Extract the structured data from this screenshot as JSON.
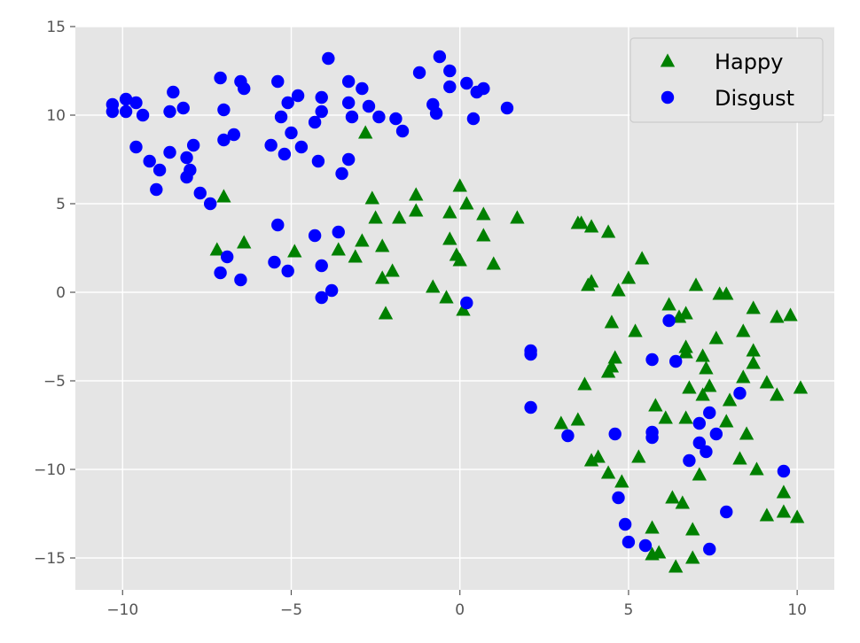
{
  "chart_data": {
    "type": "scatter",
    "title": "",
    "xlabel": "",
    "ylabel": "",
    "xlim": [
      -11.4,
      11.1
    ],
    "ylim": [
      -16.8,
      15.0
    ],
    "xticks": [
      -10,
      -5,
      0,
      5,
      10
    ],
    "yticks": [
      -15,
      -10,
      -5,
      0,
      5,
      10,
      15
    ],
    "xtick_labels": [
      "−10",
      "−5",
      "0",
      "5",
      "10"
    ],
    "ytick_labels": [
      "−15",
      "−10",
      "−5",
      "0",
      "5",
      "10",
      "15"
    ],
    "grid": true,
    "background": "#e5e5e5",
    "legend_position": "top-right",
    "series": [
      {
        "name": "Happy",
        "marker": "triangle",
        "color": "#008000",
        "points": [
          [
            -2.8,
            9.0
          ],
          [
            -7.0,
            5.4
          ],
          [
            -7.2,
            2.4
          ],
          [
            -6.4,
            2.8
          ],
          [
            -4.9,
            2.3
          ],
          [
            -3.6,
            2.4
          ],
          [
            -3.1,
            2.0
          ],
          [
            -2.9,
            2.9
          ],
          [
            -2.6,
            5.3
          ],
          [
            -2.5,
            4.2
          ],
          [
            -2.3,
            2.6
          ],
          [
            -2.0,
            1.2
          ],
          [
            -2.3,
            0.8
          ],
          [
            -2.2,
            -1.2
          ],
          [
            -1.8,
            4.2
          ],
          [
            -1.3,
            5.5
          ],
          [
            -1.3,
            4.6
          ],
          [
            -0.8,
            0.3
          ],
          [
            -0.4,
            -0.3
          ],
          [
            -0.3,
            4.5
          ],
          [
            -0.3,
            3.0
          ],
          [
            -0.1,
            2.1
          ],
          [
            0.0,
            1.8
          ],
          [
            0.0,
            6.0
          ],
          [
            0.2,
            5.0
          ],
          [
            0.1,
            -1.0
          ],
          [
            0.7,
            4.4
          ],
          [
            0.7,
            3.2
          ],
          [
            1.0,
            1.6
          ],
          [
            1.7,
            4.2
          ],
          [
            3.0,
            -7.4
          ],
          [
            3.5,
            -7.2
          ],
          [
            3.5,
            3.9
          ],
          [
            3.6,
            3.9
          ],
          [
            3.7,
            -5.2
          ],
          [
            3.8,
            0.4
          ],
          [
            3.9,
            0.6
          ],
          [
            3.9,
            3.7
          ],
          [
            3.9,
            -9.5
          ],
          [
            4.1,
            -9.3
          ],
          [
            4.4,
            3.4
          ],
          [
            4.4,
            -4.5
          ],
          [
            4.5,
            -4.2
          ],
          [
            4.5,
            -1.7
          ],
          [
            4.6,
            -3.7
          ],
          [
            4.4,
            -10.2
          ],
          [
            4.7,
            0.1
          ],
          [
            4.8,
            -10.7
          ],
          [
            5.0,
            0.8
          ],
          [
            5.2,
            -2.2
          ],
          [
            5.3,
            -9.3
          ],
          [
            5.4,
            1.9
          ],
          [
            5.7,
            -13.3
          ],
          [
            5.7,
            -14.8
          ],
          [
            5.8,
            -6.4
          ],
          [
            5.9,
            -14.7
          ],
          [
            6.1,
            -7.1
          ],
          [
            6.2,
            -0.7
          ],
          [
            6.3,
            -11.6
          ],
          [
            6.4,
            -15.5
          ],
          [
            6.5,
            -1.4
          ],
          [
            6.6,
            -11.9
          ],
          [
            6.7,
            -3.4
          ],
          [
            6.7,
            -3.1
          ],
          [
            6.7,
            -7.1
          ],
          [
            6.7,
            -1.2
          ],
          [
            6.8,
            -5.4
          ],
          [
            6.9,
            -13.4
          ],
          [
            6.9,
            -15.0
          ],
          [
            7.0,
            0.4
          ],
          [
            7.1,
            -10.3
          ],
          [
            7.2,
            -5.8
          ],
          [
            7.2,
            -3.6
          ],
          [
            7.3,
            -4.3
          ],
          [
            7.4,
            -5.3
          ],
          [
            7.6,
            -2.6
          ],
          [
            7.7,
            -0.1
          ],
          [
            7.9,
            -0.1
          ],
          [
            7.9,
            -7.3
          ],
          [
            8.0,
            -6.1
          ],
          [
            8.3,
            -9.4
          ],
          [
            8.4,
            -2.2
          ],
          [
            8.4,
            -4.8
          ],
          [
            8.5,
            -8.0
          ],
          [
            8.7,
            -0.9
          ],
          [
            8.7,
            -3.3
          ],
          [
            8.7,
            -4.0
          ],
          [
            8.8,
            -10.0
          ],
          [
            9.1,
            -5.1
          ],
          [
            9.1,
            -12.6
          ],
          [
            9.4,
            -1.4
          ],
          [
            9.4,
            -5.8
          ],
          [
            9.6,
            -12.4
          ],
          [
            9.6,
            -11.3
          ],
          [
            9.8,
            -1.3
          ],
          [
            10.0,
            -12.7
          ],
          [
            10.1,
            -5.4
          ]
        ]
      },
      {
        "name": "Disgust",
        "marker": "circle",
        "color": "#0000ff",
        "points": [
          [
            -10.3,
            10.6
          ],
          [
            -10.3,
            10.2
          ],
          [
            -9.9,
            10.9
          ],
          [
            -9.9,
            10.2
          ],
          [
            -9.6,
            10.7
          ],
          [
            -9.6,
            8.2
          ],
          [
            -9.4,
            10.0
          ],
          [
            -9.2,
            7.4
          ],
          [
            -9.0,
            5.8
          ],
          [
            -8.9,
            6.9
          ],
          [
            -8.6,
            10.2
          ],
          [
            -8.6,
            7.9
          ],
          [
            -8.5,
            11.3
          ],
          [
            -8.2,
            10.4
          ],
          [
            -8.1,
            7.6
          ],
          [
            -8.0,
            6.9
          ],
          [
            -7.9,
            8.3
          ],
          [
            -8.1,
            6.5
          ],
          [
            -7.7,
            5.6
          ],
          [
            -7.4,
            5.0
          ],
          [
            -7.1,
            12.1
          ],
          [
            -7.0,
            10.3
          ],
          [
            -7.0,
            8.6
          ],
          [
            -6.7,
            8.9
          ],
          [
            -6.5,
            11.9
          ],
          [
            -6.4,
            11.5
          ],
          [
            -7.1,
            1.1
          ],
          [
            -6.9,
            2.0
          ],
          [
            -6.5,
            0.7
          ],
          [
            -5.6,
            8.3
          ],
          [
            -5.4,
            11.9
          ],
          [
            -5.3,
            9.9
          ],
          [
            -5.1,
            10.7
          ],
          [
            -5.0,
            9.0
          ],
          [
            -5.2,
            7.8
          ],
          [
            -4.8,
            11.1
          ],
          [
            -4.7,
            8.2
          ],
          [
            -5.4,
            3.8
          ],
          [
            -5.5,
            1.7
          ],
          [
            -5.1,
            1.2
          ],
          [
            -4.3,
            9.6
          ],
          [
            -4.2,
            7.4
          ],
          [
            -4.1,
            11.0
          ],
          [
            -4.1,
            10.2
          ],
          [
            -3.9,
            13.2
          ],
          [
            -3.5,
            6.7
          ],
          [
            -3.3,
            11.9
          ],
          [
            -3.3,
            10.7
          ],
          [
            -3.2,
            9.9
          ],
          [
            -3.3,
            7.5
          ],
          [
            -2.9,
            11.5
          ],
          [
            -2.7,
            10.5
          ],
          [
            -2.4,
            9.9
          ],
          [
            -4.3,
            3.2
          ],
          [
            -4.1,
            1.5
          ],
          [
            -3.6,
            3.4
          ],
          [
            -3.8,
            0.1
          ],
          [
            -4.1,
            -0.3
          ],
          [
            -1.9,
            9.8
          ],
          [
            -1.7,
            9.1
          ],
          [
            -1.2,
            12.4
          ],
          [
            -0.8,
            10.6
          ],
          [
            -0.7,
            10.1
          ],
          [
            -0.6,
            13.3
          ],
          [
            -0.3,
            12.5
          ],
          [
            -0.3,
            11.6
          ],
          [
            0.2,
            11.8
          ],
          [
            0.4,
            9.8
          ],
          [
            0.5,
            11.3
          ],
          [
            0.7,
            11.5
          ],
          [
            1.4,
            10.4
          ],
          [
            0.2,
            -0.6
          ],
          [
            2.1,
            -3.3
          ],
          [
            2.1,
            -3.5
          ],
          [
            2.1,
            -6.5
          ],
          [
            3.2,
            -8.1
          ],
          [
            4.6,
            -8.0
          ],
          [
            4.7,
            -11.6
          ],
          [
            4.9,
            -13.1
          ],
          [
            5.0,
            -14.1
          ],
          [
            5.5,
            -14.3
          ],
          [
            5.7,
            -3.8
          ],
          [
            5.7,
            -7.9
          ],
          [
            5.7,
            -8.2
          ],
          [
            6.2,
            -1.6
          ],
          [
            6.4,
            -3.9
          ],
          [
            6.8,
            -9.5
          ],
          [
            7.1,
            -7.4
          ],
          [
            7.1,
            -8.5
          ],
          [
            7.3,
            -9.0
          ],
          [
            7.4,
            -6.8
          ],
          [
            7.6,
            -8.0
          ],
          [
            7.4,
            -14.5
          ],
          [
            7.9,
            -12.4
          ],
          [
            8.3,
            -5.7
          ],
          [
            9.6,
            -10.1
          ]
        ]
      }
    ]
  }
}
